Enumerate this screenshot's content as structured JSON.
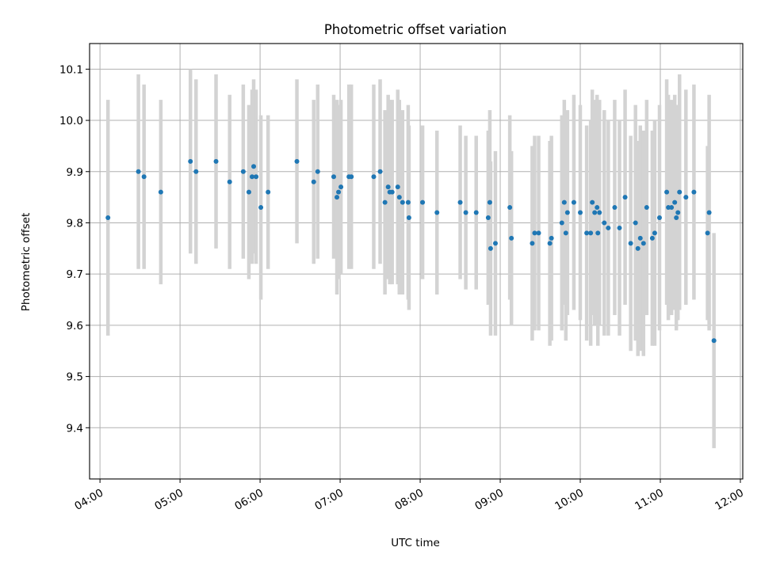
{
  "chart_data": {
    "type": "scatter",
    "title": "Photometric offset variation",
    "xlabel": "UTC time",
    "ylabel": "Photometric offset",
    "x_unit": "hours UTC",
    "xlim": [
      3.87,
      12.03
    ],
    "ylim": [
      9.3,
      10.15
    ],
    "xticks": [
      4,
      5,
      6,
      7,
      8,
      9,
      10,
      11,
      12
    ],
    "xtick_labels": [
      "04:00",
      "05:00",
      "06:00",
      "07:00",
      "08:00",
      "09:00",
      "10:00",
      "11:00",
      "12:00"
    ],
    "yticks": [
      9.4,
      9.5,
      9.6,
      9.7,
      9.8,
      9.9,
      10.0,
      10.1
    ],
    "ytick_labels": [
      "9.4",
      "9.5",
      "9.6",
      "9.7",
      "9.8",
      "9.9",
      "10.0",
      "10.1"
    ],
    "grid": true,
    "colors": {
      "point": "#1f77b4",
      "errorbar": "#d3d3d3",
      "grid": "#b0b0b0"
    },
    "series": [
      {
        "x": [
          4.1,
          4.48,
          4.55,
          4.76,
          5.13,
          5.2,
          5.45,
          5.62,
          5.79,
          5.86,
          5.9,
          5.92,
          5.95,
          6.01,
          6.1,
          6.46,
          6.67,
          6.72,
          6.92,
          6.96,
          6.98,
          7.01,
          7.11,
          7.14,
          7.42,
          7.5,
          7.56,
          7.6,
          7.62,
          7.65,
          7.72,
          7.74,
          7.78,
          7.85,
          7.86,
          8.03,
          8.21,
          8.5,
          8.57,
          8.7,
          8.85,
          8.87,
          8.88,
          8.94,
          9.12,
          9.14,
          9.4,
          9.43,
          9.48,
          9.62,
          9.64,
          9.77,
          9.8,
          9.82,
          9.84,
          9.92,
          10.0,
          10.08,
          10.13,
          10.15,
          10.18,
          10.21,
          10.22,
          10.24,
          10.3,
          10.35,
          10.43,
          10.49,
          10.56,
          10.63,
          10.69,
          10.72,
          10.75,
          10.79,
          10.83,
          10.9,
          10.93,
          10.99,
          11.08,
          11.1,
          11.14,
          11.18,
          11.2,
          11.22,
          11.24,
          11.32,
          11.42,
          11.59,
          11.61,
          11.67
        ],
        "y": [
          9.81,
          9.9,
          9.89,
          9.86,
          9.92,
          9.9,
          9.92,
          9.88,
          9.9,
          9.86,
          9.89,
          9.91,
          9.89,
          9.83,
          9.86,
          9.92,
          9.88,
          9.9,
          9.89,
          9.85,
          9.86,
          9.87,
          9.89,
          9.89,
          9.89,
          9.9,
          9.84,
          9.87,
          9.86,
          9.86,
          9.87,
          9.85,
          9.84,
          9.84,
          9.81,
          9.84,
          9.82,
          9.84,
          9.82,
          9.82,
          9.81,
          9.84,
          9.75,
          9.76,
          9.83,
          9.77,
          9.76,
          9.78,
          9.78,
          9.76,
          9.77,
          9.8,
          9.84,
          9.78,
          9.82,
          9.84,
          9.82,
          9.78,
          9.78,
          9.84,
          9.82,
          9.83,
          9.78,
          9.82,
          9.8,
          9.79,
          9.83,
          9.79,
          9.85,
          9.76,
          9.8,
          9.75,
          9.77,
          9.76,
          9.83,
          9.77,
          9.78,
          9.81,
          9.86,
          9.83,
          9.83,
          9.84,
          9.81,
          9.82,
          9.86,
          9.85,
          9.86,
          9.78,
          9.82,
          9.57
        ],
        "yerr": [
          0.23,
          0.19,
          0.18,
          0.18,
          0.18,
          0.18,
          0.17,
          0.17,
          0.17,
          0.17,
          0.17,
          0.17,
          0.17,
          0.18,
          0.15,
          0.16,
          0.16,
          0.17,
          0.16,
          0.19,
          0.17,
          0.17,
          0.18,
          0.18,
          0.18,
          0.18,
          0.18,
          0.18,
          0.18,
          0.18,
          0.19,
          0.19,
          0.18,
          0.19,
          0.18,
          0.15,
          0.16,
          0.15,
          0.15,
          0.15,
          0.17,
          0.18,
          0.17,
          0.18,
          0.18,
          0.17,
          0.19,
          0.19,
          0.19,
          0.2,
          0.2,
          0.21,
          0.2,
          0.21,
          0.2,
          0.21,
          0.21,
          0.21,
          0.22,
          0.22,
          0.22,
          0.22,
          0.22,
          0.22,
          0.22,
          0.21,
          0.21,
          0.21,
          0.21,
          0.21,
          0.23,
          0.21,
          0.22,
          0.22,
          0.21,
          0.21,
          0.22,
          0.22,
          0.22,
          0.22,
          0.21,
          0.21,
          0.22,
          0.21,
          0.23,
          0.21,
          0.21,
          0.17,
          0.23,
          0.21
        ]
      }
    ]
  }
}
